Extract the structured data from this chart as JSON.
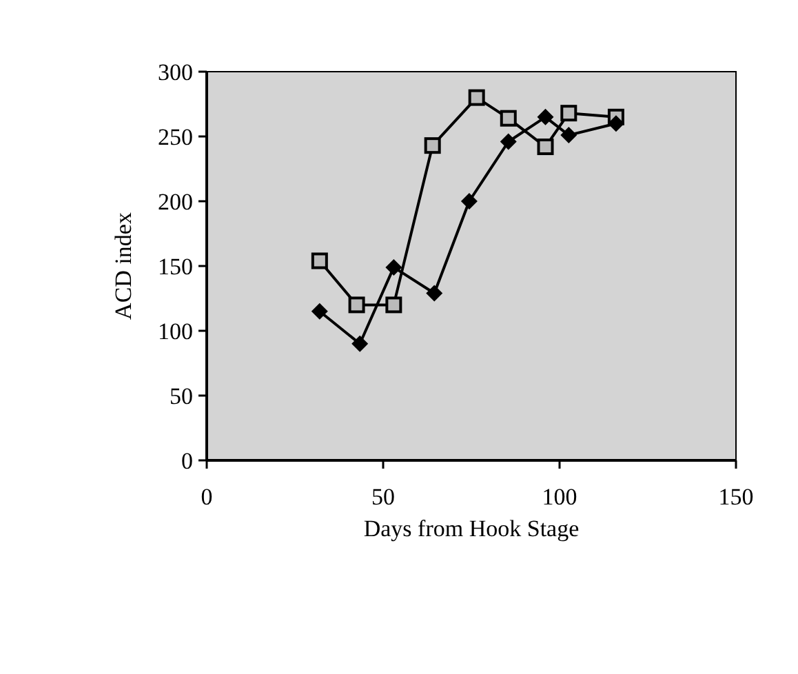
{
  "chart_data": {
    "type": "line",
    "xlabel": "Days from Hook Stage",
    "ylabel": "ACD index",
    "xlim": [
      0,
      150
    ],
    "xticks": [
      0,
      50,
      100,
      150
    ],
    "ylim": [
      0,
      300
    ],
    "yticks": [
      0,
      50,
      100,
      150,
      200,
      250,
      300
    ],
    "grid": false,
    "line_style": "solid",
    "series": [
      {
        "color": "#000000",
        "marker": "square",
        "x": [
          32,
          42.5,
          53,
          64,
          76.5,
          85.5,
          96,
          102.6,
          116
        ],
        "values": [
          154,
          120,
          120,
          243,
          280,
          264,
          242,
          268,
          265
        ]
      },
      {
        "color": "#000000",
        "marker": "diamond",
        "x": [
          32,
          43.4,
          53,
          64.5,
          74.4,
          85.5,
          96,
          102.6,
          116
        ],
        "values": [
          115,
          90,
          149,
          129,
          200,
          246,
          265,
          251,
          260
        ]
      }
    ]
  }
}
